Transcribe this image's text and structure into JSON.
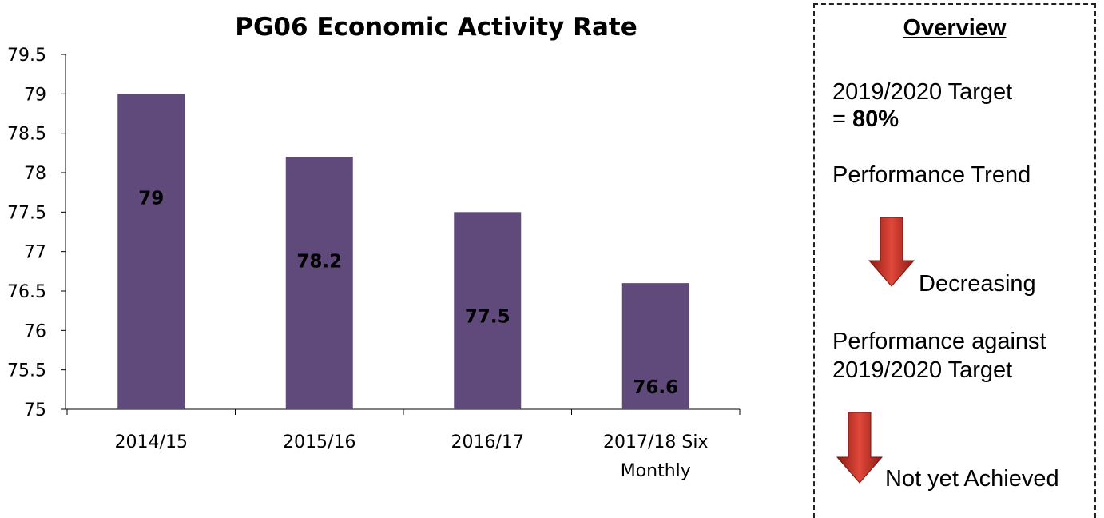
{
  "chart_data": {
    "type": "bar",
    "title": "PG06 Economic Activity Rate",
    "categories": [
      [
        "2014/15"
      ],
      [
        "2015/16"
      ],
      [
        "2016/17"
      ],
      [
        "2017/18 Six",
        "Monthly"
      ]
    ],
    "values": [
      79,
      78.2,
      77.5,
      76.6
    ],
    "data_labels": [
      "79",
      "78.2",
      "77.5",
      "76.6"
    ],
    "ylim": [
      75,
      79.5
    ],
    "yticks": [
      "75",
      "75.5",
      "76",
      "76.5",
      "77",
      "77.5",
      "78",
      "78.5",
      "79",
      "79.5"
    ],
    "bar_color": "#604a7b",
    "grid": false,
    "legend": false
  },
  "overview": {
    "title": "Overview",
    "target_line1": "2019/2020 Target",
    "target_prefix": "= ",
    "target_value": "80%",
    "trend_label": "Performance Trend",
    "trend_status": "Decreasing",
    "against_line1": "Performance against",
    "against_line2": "2019/2020 Target",
    "against_status": "Not yet Achieved",
    "arrow_icon": "down-arrow-icon",
    "arrow_color": "#c0392b"
  }
}
